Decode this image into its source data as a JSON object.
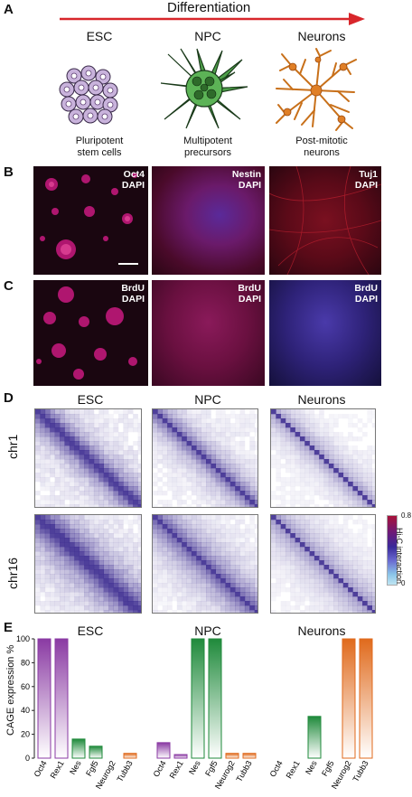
{
  "panels": {
    "a": "A",
    "b": "B",
    "c": "C",
    "d": "D",
    "e": "E"
  },
  "differentiation_label": "Differentiation",
  "stages": [
    {
      "title": "ESC",
      "caption_line1": "Pluripotent",
      "caption_line2": "stem cells"
    },
    {
      "title": "NPC",
      "caption_line1": "Multipotent",
      "caption_line2": "precursors"
    },
    {
      "title": "Neurons",
      "caption_line1": "Post-mitotic",
      "caption_line2": "neurons"
    }
  ],
  "microscopy_b": [
    {
      "marker": "Oct4",
      "stain": "DAPI"
    },
    {
      "marker": "Nestin",
      "stain": "DAPI"
    },
    {
      "marker": "Tuj1",
      "stain": "DAPI"
    }
  ],
  "microscopy_c": [
    {
      "marker": "BrdU",
      "stain": "DAPI"
    },
    {
      "marker": "BrdU",
      "stain": "DAPI"
    },
    {
      "marker": "BrdU",
      "stain": "DAPI"
    }
  ],
  "hic": {
    "column_titles": [
      "ESC",
      "NPC",
      "Neurons"
    ],
    "row_labels": [
      "chr1",
      "chr16"
    ],
    "colorbar": {
      "label": "Hi-C interaction",
      "max": "0.8",
      "min": "0"
    }
  },
  "colors": {
    "arrow": "#d8262b",
    "esc": "#8a3aa3",
    "npc": "#1f8a3b",
    "neurons": "#e06a1c",
    "hic_diag": "#3b2a8f"
  },
  "chart_data": [
    {
      "type": "bar",
      "title": "ESC",
      "ylabel": "CAGE expression %",
      "ylim": [
        0,
        100
      ],
      "yticks": [
        "0",
        "20",
        "40",
        "60",
        "80",
        "100"
      ],
      "categories": [
        "Oct4",
        "Rex1",
        "Nes",
        "Fgf5",
        "Neurog2",
        "Tubb3"
      ],
      "values": [
        100,
        100,
        16,
        10,
        0,
        4
      ],
      "bar_colors": [
        "#8a3aa3",
        "#8a3aa3",
        "#1f8a3b",
        "#1f8a3b",
        "#e06a1c",
        "#e06a1c"
      ]
    },
    {
      "type": "bar",
      "title": "NPC",
      "ylim": [
        0,
        100
      ],
      "categories": [
        "Oct4",
        "Rex1",
        "Nes",
        "Fgf5",
        "Neurog2",
        "Tubb3"
      ],
      "values": [
        13,
        3,
        100,
        100,
        4,
        4
      ],
      "bar_colors": [
        "#8a3aa3",
        "#8a3aa3",
        "#1f8a3b",
        "#1f8a3b",
        "#e06a1c",
        "#e06a1c"
      ]
    },
    {
      "type": "bar",
      "title": "Neurons",
      "ylim": [
        0,
        100
      ],
      "categories": [
        "Oct4",
        "Rex1",
        "Nes",
        "Fgf5",
        "Neurog2",
        "Tubb3"
      ],
      "values": [
        0,
        0,
        35,
        0,
        100,
        100
      ],
      "bar_colors": [
        "#8a3aa3",
        "#8a3aa3",
        "#1f8a3b",
        "#1f8a3b",
        "#e06a1c",
        "#e06a1c"
      ]
    }
  ]
}
